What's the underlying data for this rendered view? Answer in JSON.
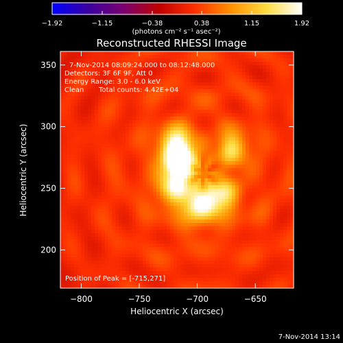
{
  "chart_data": {
    "type": "heatmap",
    "title": "Reconstructed RHESSI Image",
    "xlabel": "Heliocentric X (arcsec)",
    "ylabel": "Heliocentric Y (arcsec)",
    "xlim": [
      -818,
      -617
    ],
    "ylim": [
      169,
      361
    ],
    "x_ticks": [
      -800,
      -750,
      -700,
      -650
    ],
    "y_ticks": [
      200,
      250,
      300,
      350
    ],
    "colorbar": {
      "unit_label": "(photons cm⁻² s⁻¹ asec⁻²)",
      "range": [
        -1.92,
        1.92
      ],
      "ticks": [
        "-1.92",
        "-1.15",
        "-0.38",
        "0.38",
        "1.15",
        "1.92"
      ],
      "colors": [
        "#0000ff",
        "#3a00a0",
        "#7a0070",
        "#c00000",
        "#ff3000",
        "#ff9000",
        "#ffdc40",
        "#ffffff"
      ]
    },
    "annotations": {
      "time": "7-Nov-2014 08:09:24.000 to 08:12:48.000",
      "detectors": "Detectors: 3F 6F 9F, Att 0",
      "energy": "Energy Range: 3.0 - 6.0 keV",
      "method": "Clean",
      "counts": "Total counts: 4.42E+04",
      "peak": "Position of Peak = [-715,271]"
    },
    "sources": [
      {
        "x": -715,
        "y": 271,
        "peak": 1.92,
        "sigma": 9
      },
      {
        "x": -718,
        "y": 285,
        "peak": 1.5,
        "sigma": 10
      },
      {
        "x": -670,
        "y": 282,
        "peak": 1.1,
        "sigma": 9
      },
      {
        "x": -721,
        "y": 252,
        "peak": 1.2,
        "sigma": 10
      },
      {
        "x": -700,
        "y": 237,
        "peak": 1.35,
        "sigma": 11
      },
      {
        "x": -680,
        "y": 243,
        "peak": 1.2,
        "sigma": 10
      }
    ],
    "background_level": 0.45,
    "footer": "7-Nov-2014 13:14"
  }
}
